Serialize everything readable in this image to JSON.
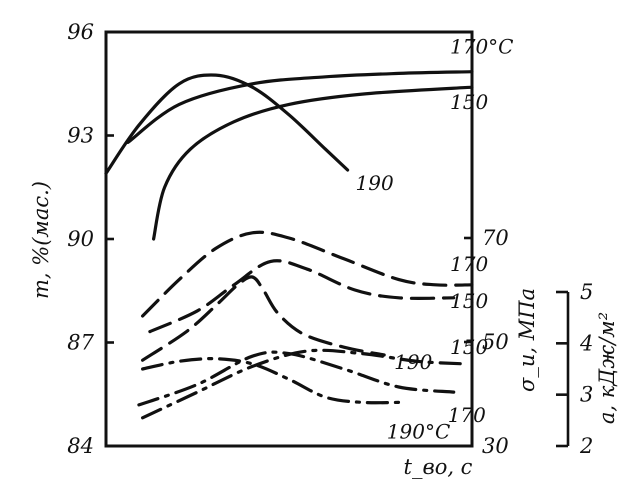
{
  "chart_data": {
    "type": "line",
    "x_label": "t_во, с",
    "y_axes": [
      {
        "id": "m",
        "label": "m, %(мас.)",
        "position": "left",
        "range": [
          84,
          96
        ],
        "ticks": [
          {
            "v": 84,
            "label": "84"
          },
          {
            "v": 87,
            "label": "87"
          },
          {
            "v": 90,
            "label": "90"
          },
          {
            "v": 93,
            "label": "93"
          },
          {
            "v": 96,
            "label": "96"
          }
        ]
      },
      {
        "id": "sigma",
        "label": "σ_и, МПа",
        "position": "right",
        "range": [
          30,
          70
        ],
        "ticks": [
          {
            "v": 30,
            "label": "30"
          },
          {
            "v": 50,
            "label": "50"
          },
          {
            "v": 70,
            "label": "70"
          }
        ]
      },
      {
        "id": "a",
        "label": "a, кДж/м²",
        "position": "far-right",
        "range": [
          2,
          5
        ],
        "ticks": [
          {
            "v": 2,
            "label": "2"
          },
          {
            "v": 3,
            "label": "3"
          },
          {
            "v": 4,
            "label": "4"
          },
          {
            "v": 5,
            "label": "5"
          }
        ]
      }
    ],
    "x_range": [
      0,
      10
    ],
    "series": [
      {
        "name": "170°C",
        "axis": "m",
        "style": "solid",
        "points": [
          [
            0.6,
            92.8
          ],
          [
            2.0,
            93.9
          ],
          [
            4.0,
            94.5
          ],
          [
            6.0,
            94.7
          ],
          [
            8.0,
            94.8
          ],
          [
            10.0,
            94.85
          ]
        ]
      },
      {
        "name": "150",
        "axis": "m",
        "style": "solid",
        "points": [
          [
            1.3,
            90.0
          ],
          [
            1.6,
            91.5
          ],
          [
            2.3,
            92.6
          ],
          [
            3.5,
            93.4
          ],
          [
            5.0,
            93.9
          ],
          [
            7.0,
            94.2
          ],
          [
            10.0,
            94.4
          ]
        ]
      },
      {
        "name": "190",
        "axis": "m",
        "style": "solid",
        "points": [
          [
            0.0,
            91.9
          ],
          [
            0.9,
            93.3
          ],
          [
            2.0,
            94.5
          ],
          [
            3.0,
            94.75
          ],
          [
            4.0,
            94.4
          ],
          [
            5.0,
            93.6
          ],
          [
            6.0,
            92.6
          ],
          [
            6.6,
            92.0
          ]
        ]
      },
      {
        "name": "170",
        "axis": "sigma",
        "style": "dashed",
        "points": [
          [
            1.0,
            55.0
          ],
          [
            2.0,
            62.0
          ],
          [
            3.0,
            68.0
          ],
          [
            4.0,
            71.0
          ],
          [
            5.0,
            70.0
          ],
          [
            6.5,
            66.0
          ],
          [
            8.0,
            62.0
          ],
          [
            9.0,
            61.0
          ],
          [
            10.0,
            61.0
          ]
        ]
      },
      {
        "name": "150",
        "axis": "sigma",
        "style": "dashed",
        "points": [
          [
            1.2,
            52.0
          ],
          [
            2.5,
            56.0
          ],
          [
            3.5,
            61.0
          ],
          [
            4.5,
            65.5
          ],
          [
            5.5,
            64.0
          ],
          [
            6.8,
            60.0
          ],
          [
            8.0,
            58.5
          ],
          [
            9.5,
            58.5
          ]
        ]
      },
      {
        "name": "190",
        "axis": "sigma",
        "style": "dashed",
        "points": [
          [
            1.0,
            46.5
          ],
          [
            2.2,
            52.0
          ],
          [
            3.0,
            57.0
          ],
          [
            3.6,
            61.0
          ],
          [
            4.0,
            62.5
          ],
          [
            4.3,
            60.0
          ],
          [
            4.7,
            55.5
          ],
          [
            5.4,
            51.5
          ],
          [
            6.5,
            49.0
          ],
          [
            7.6,
            47.5
          ]
        ]
      },
      {
        "name": "150",
        "axis": "a",
        "style": "dash-dot",
        "points": [
          [
            1.0,
            2.55
          ],
          [
            2.5,
            3.05
          ],
          [
            4.0,
            3.55
          ],
          [
            5.5,
            3.85
          ],
          [
            7.0,
            3.8
          ],
          [
            8.5,
            3.65
          ],
          [
            9.8,
            3.6
          ]
        ]
      },
      {
        "name": "170",
        "axis": "a",
        "style": "dash-dot",
        "points": [
          [
            0.9,
            2.8
          ],
          [
            2.5,
            3.2
          ],
          [
            4.0,
            3.75
          ],
          [
            5.0,
            3.8
          ],
          [
            6.5,
            3.5
          ],
          [
            8.0,
            3.15
          ],
          [
            9.5,
            3.05
          ]
        ]
      },
      {
        "name": "190°C",
        "axis": "a",
        "style": "dash-dot",
        "points": [
          [
            1.0,
            3.5
          ],
          [
            2.0,
            3.65
          ],
          [
            3.0,
            3.7
          ],
          [
            4.0,
            3.6
          ],
          [
            5.0,
            3.3
          ],
          [
            6.0,
            2.95
          ],
          [
            7.0,
            2.85
          ],
          [
            8.0,
            2.85
          ]
        ]
      }
    ]
  }
}
